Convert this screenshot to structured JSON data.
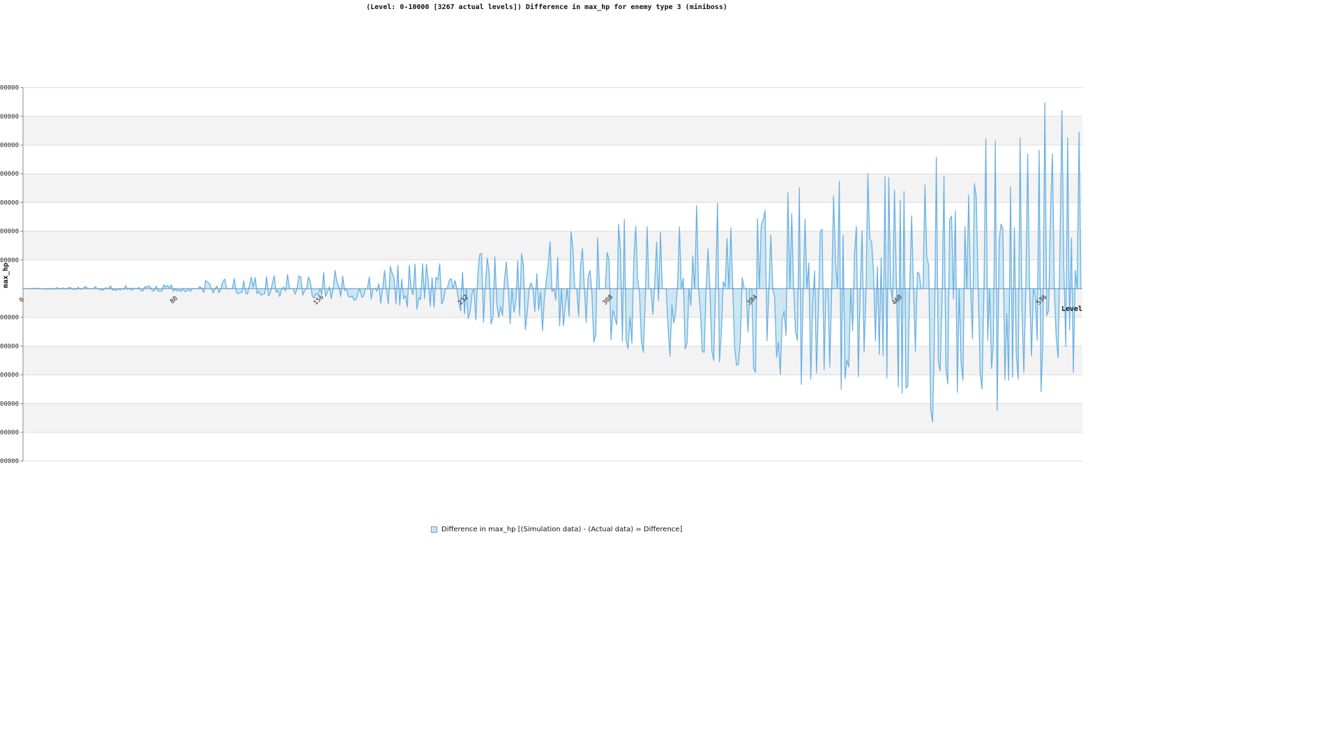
{
  "chart_data": {
    "type": "area",
    "title": "(Level: 0-10000 [3267 actual levels]) Difference in max_hp for enemy type 3 (miniboss)",
    "xlabel": "Level",
    "ylabel": "max_hp",
    "x_tick_labels": [
      "0",
      "80",
      "156",
      "232",
      "308",
      "384",
      "460",
      "536"
    ],
    "y_tick_labels": [
      "000000",
      "000000",
      "000000",
      "000000",
      "000000",
      "000000",
      "000000",
      "",
      "000000",
      "000000",
      "000000",
      "000000",
      "000000",
      "000000"
    ],
    "grid": true,
    "legend_position": "bottom",
    "series": [
      {
        "name": "Difference in max_hp [(Simulation data) - (Actual data) = Difference]",
        "color": "#6ab0e4",
        "fill": "#c9e6f0"
      }
    ],
    "envelope": {
      "positive_peaks": [
        [
          0,
          0.0
        ],
        [
          80,
          0.2
        ],
        [
          156,
          0.6
        ],
        [
          200,
          0.9
        ],
        [
          232,
          1.3
        ],
        [
          270,
          1.7
        ],
        [
          300,
          2.2
        ],
        [
          330,
          2.7
        ],
        [
          360,
          3.0
        ],
        [
          384,
          3.2
        ],
        [
          420,
          3.8
        ],
        [
          460,
          4.2
        ],
        [
          500,
          5.0
        ],
        [
          536,
          6.8
        ]
      ],
      "negative_peaks": [
        [
          0,
          0.0
        ],
        [
          80,
          0.1
        ],
        [
          156,
          0.3
        ],
        [
          200,
          0.7
        ],
        [
          232,
          1.1
        ],
        [
          270,
          1.5
        ],
        [
          300,
          2.0
        ],
        [
          330,
          2.4
        ],
        [
          360,
          2.8
        ],
        [
          384,
          3.0
        ],
        [
          420,
          3.6
        ],
        [
          460,
          4.0
        ],
        [
          500,
          5.6
        ],
        [
          536,
          3.0
        ]
      ]
    }
  }
}
